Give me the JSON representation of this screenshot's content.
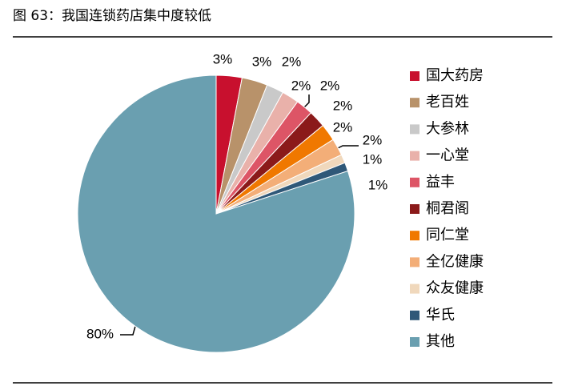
{
  "chart_data": {
    "type": "pie",
    "title": "图 63：我国连锁药店集中度较低",
    "categories": [
      "国大药房",
      "老百姓",
      "大参林",
      "一心堂",
      "益丰",
      "桐君阁",
      "同仁堂",
      "全亿健康",
      "众友健康",
      "华氏",
      "其他"
    ],
    "values": [
      3,
      3,
      2,
      2,
      2,
      2,
      2,
      2,
      1,
      1,
      80
    ],
    "value_labels": [
      "3%",
      "3%",
      "2%",
      "2%",
      "2%",
      "2%",
      "2%",
      "2%",
      "1%",
      "1%",
      "80%"
    ],
    "colors": [
      "#c8102e",
      "#b8926a",
      "#c9c9c9",
      "#e9b1aa",
      "#dd5566",
      "#8b1a1a",
      "#f07800",
      "#f3ae78",
      "#f0d8bc",
      "#2f5878",
      "#6a9fb0"
    ],
    "legend": "right"
  }
}
